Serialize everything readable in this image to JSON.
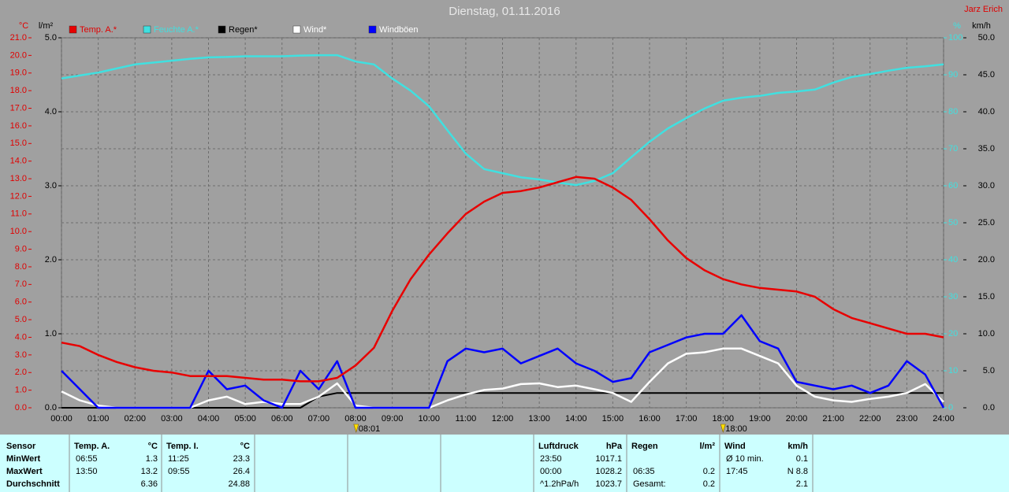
{
  "chart_data": {
    "type": "line",
    "title": "Dienstag, 01.11.2016",
    "author": "Jarz Erich",
    "axis_units": {
      "y": "°C",
      "y2": "l/m²",
      "y3": "%",
      "y4": "km/h"
    },
    "x": [
      0,
      0.5,
      1,
      1.5,
      2,
      2.5,
      3,
      3.5,
      4,
      4.5,
      5,
      5.5,
      6,
      6.5,
      7,
      7.5,
      8,
      8.5,
      9,
      9.5,
      10,
      10.5,
      11,
      11.5,
      12,
      12.5,
      13,
      13.5,
      14,
      14.5,
      15,
      15.5,
      16,
      16.5,
      17,
      17.5,
      18,
      18.5,
      19,
      19.5,
      20,
      20.5,
      21,
      21.5,
      22,
      22.5,
      23,
      23.5,
      24
    ],
    "xlim": [
      0,
      24
    ],
    "xticks": [
      {
        "value": 0,
        "label": "00:00"
      },
      {
        "value": 1,
        "label": "01:00"
      },
      {
        "value": 2,
        "label": "02:00"
      },
      {
        "value": 3,
        "label": "03:00"
      },
      {
        "value": 4,
        "label": "04:00"
      },
      {
        "value": 5,
        "label": "05:00"
      },
      {
        "value": 6,
        "label": "06:00"
      },
      {
        "value": 7,
        "label": "07:00"
      },
      {
        "value": 8,
        "label": "08:00"
      },
      {
        "value": 9,
        "label": "09:00"
      },
      {
        "value": 10,
        "label": "10:00"
      },
      {
        "value": 11,
        "label": "11:00"
      },
      {
        "value": 12,
        "label": "12:00"
      },
      {
        "value": 13,
        "label": "13:00"
      },
      {
        "value": 14,
        "label": "14:00"
      },
      {
        "value": 15,
        "label": "15:00"
      },
      {
        "value": 16,
        "label": "16:00"
      },
      {
        "value": 17,
        "label": "17:00"
      },
      {
        "value": 18,
        "label": "18:00"
      },
      {
        "value": 19,
        "label": "19:00"
      },
      {
        "value": 20,
        "label": "20:00"
      },
      {
        "value": 21,
        "label": "21:00"
      },
      {
        "value": 22,
        "label": "22:00"
      },
      {
        "value": 23,
        "label": "23:00"
      },
      {
        "value": 24,
        "label": "24:00"
      }
    ],
    "ylim": [
      0,
      21
    ],
    "yticks": [
      {
        "value": 0,
        "label": "0.0"
      },
      {
        "value": 1,
        "label": "1.0"
      },
      {
        "value": 2,
        "label": "2.0"
      },
      {
        "value": 3,
        "label": "3.0"
      },
      {
        "value": 4,
        "label": "4.0"
      },
      {
        "value": 5,
        "label": "5.0"
      },
      {
        "value": 6,
        "label": "6.0"
      },
      {
        "value": 7,
        "label": "7.0"
      },
      {
        "value": 8,
        "label": "8.0"
      },
      {
        "value": 9,
        "label": "9.0"
      },
      {
        "value": 10,
        "label": "10.0"
      },
      {
        "value": 11,
        "label": "11.0"
      },
      {
        "value": 12,
        "label": "12.0"
      },
      {
        "value": 13,
        "label": "13.0"
      },
      {
        "value": 14,
        "label": "14.0"
      },
      {
        "value": 15,
        "label": "15.0"
      },
      {
        "value": 16,
        "label": "16.0"
      },
      {
        "value": 17,
        "label": "17.0"
      },
      {
        "value": 18,
        "label": "18.0"
      },
      {
        "value": 19,
        "label": "19.0"
      },
      {
        "value": 20,
        "label": "20.0"
      },
      {
        "value": 21,
        "label": "21.0"
      }
    ],
    "y2lim": [
      0,
      5
    ],
    "y2ticks": [
      {
        "value": 0,
        "label": "0.0"
      },
      {
        "value": 1,
        "label": "1.0"
      },
      {
        "value": 2,
        "label": "2.0"
      },
      {
        "value": 3,
        "label": "3.0"
      },
      {
        "value": 4,
        "label": "4.0"
      },
      {
        "value": 5,
        "label": "5.0"
      }
    ],
    "y3lim": [
      0,
      100
    ],
    "y3ticks": [
      0,
      10,
      20,
      30,
      40,
      50,
      60,
      70,
      80,
      90,
      100
    ],
    "y4lim": [
      0,
      50
    ],
    "y4ticks": [
      {
        "value": 0,
        "label": "0.0"
      },
      {
        "value": 5,
        "label": "5.0"
      },
      {
        "value": 10,
        "label": "10.0"
      },
      {
        "value": 15,
        "label": "15.0"
      },
      {
        "value": 20,
        "label": "20.0"
      },
      {
        "value": 25,
        "label": "25.0"
      },
      {
        "value": 30,
        "label": "30.0"
      },
      {
        "value": 35,
        "label": "35.0"
      },
      {
        "value": 40,
        "label": "40.0"
      },
      {
        "value": 45,
        "label": "45.0"
      },
      {
        "value": 50,
        "label": "50.0"
      }
    ],
    "grid": true,
    "series": [
      {
        "name": "Temp. A.*",
        "color": "#e80000",
        "axis": "y",
        "values": [
          3.7,
          3.5,
          3.0,
          2.6,
          2.3,
          2.1,
          2.0,
          1.8,
          1.8,
          1.8,
          1.7,
          1.6,
          1.6,
          1.5,
          1.5,
          1.7,
          2.4,
          3.4,
          5.5,
          7.3,
          8.7,
          9.9,
          11.0,
          11.7,
          12.2,
          12.3,
          12.5,
          12.8,
          13.1,
          13.0,
          12.5,
          11.8,
          10.7,
          9.5,
          8.5,
          7.8,
          7.3,
          7.0,
          6.8,
          6.7,
          6.6,
          6.3,
          5.6,
          5.1,
          4.8,
          4.5,
          4.2,
          4.2,
          4.0
        ]
      },
      {
        "name": "Feuchte A.*",
        "color": "#40e0e0",
        "axis": "y3",
        "values": [
          89.0,
          89.8,
          90.6,
          91.7,
          92.8,
          93.3,
          93.8,
          94.3,
          94.7,
          94.8,
          95.0,
          95.0,
          95.0,
          95.2,
          95.3,
          95.3,
          93.6,
          92.8,
          89.0,
          85.7,
          81.5,
          75.0,
          68.7,
          64.5,
          63.4,
          62.3,
          61.7,
          60.9,
          60.2,
          61.3,
          63.4,
          67.7,
          71.9,
          75.5,
          78.3,
          80.9,
          83.0,
          83.8,
          84.3,
          85.1,
          85.5,
          86.0,
          87.9,
          89.4,
          90.2,
          91.1,
          91.9,
          92.3,
          92.8
        ]
      },
      {
        "name": "Regen*",
        "color": "#000000",
        "axis": "y2",
        "values": [
          0,
          0,
          0,
          0,
          0,
          0,
          0,
          0,
          0,
          0,
          0,
          0,
          0,
          0,
          0.15,
          0.2,
          0.2,
          0.2,
          0.2,
          0.2,
          0.2,
          0.2,
          0.2,
          0.2,
          0.2,
          0.2,
          0.2,
          0.2,
          0.2,
          0.2,
          0.2,
          0.2,
          0.2,
          0.2,
          0.2,
          0.2,
          0.2,
          0.2,
          0.2,
          0.2,
          0.2,
          0.2,
          0.2,
          0.2,
          0.2,
          0.2,
          0.2,
          0.2,
          0.2
        ]
      },
      {
        "name": "Wind*",
        "color": "#ffffff",
        "axis": "y4",
        "values": [
          2.2,
          1.0,
          0.3,
          0,
          0,
          0,
          0,
          0,
          1.0,
          1.5,
          0.5,
          0.8,
          0.5,
          0.5,
          1.5,
          3.3,
          0.3,
          0,
          0,
          0,
          0,
          1.0,
          1.8,
          2.4,
          2.6,
          3.2,
          3.3,
          2.8,
          3.0,
          2.5,
          2.0,
          0.8,
          3.5,
          6.0,
          7.3,
          7.5,
          8.0,
          8.0,
          7.0,
          6.0,
          3.0,
          1.5,
          1.0,
          0.8,
          1.2,
          1.5,
          2.0,
          3.2,
          0.8
        ]
      },
      {
        "name": "Windböen",
        "color": "#0000ff",
        "axis": "y4",
        "values": [
          5.0,
          2.5,
          0,
          0,
          0,
          0,
          0,
          0,
          5.0,
          2.5,
          3.0,
          1.0,
          0,
          5.0,
          2.5,
          6.3,
          0,
          0,
          0,
          0,
          0,
          6.3,
          8.0,
          7.5,
          8.0,
          6.0,
          7.0,
          8.0,
          6.0,
          5.0,
          3.5,
          4.0,
          7.5,
          8.5,
          9.5,
          10.0,
          10.0,
          12.5,
          9.0,
          8.0,
          3.5,
          3.0,
          2.5,
          3.0,
          2.0,
          3.0,
          6.3,
          4.5,
          0
        ]
      }
    ],
    "annotations": [
      {
        "x": 8.0167,
        "label": "08:01"
      },
      {
        "x": 18,
        "label": "18:00"
      }
    ]
  },
  "stats": {
    "row_labels": {
      "header": "Sensor",
      "rows": [
        "MinWert",
        "MaxWert",
        "Durchschnitt"
      ]
    },
    "panels": [
      {
        "title": "Temp. A.",
        "unit": "°C",
        "rows": [
          [
            "06:55",
            "1.3"
          ],
          [
            "13:50",
            "13.2"
          ],
          [
            null,
            "6.36"
          ]
        ]
      },
      {
        "title": "Temp. I.",
        "unit": "°C",
        "rows": [
          [
            "11:25",
            "23.3"
          ],
          [
            "09:55",
            "26.4"
          ],
          [
            null,
            "24.88"
          ]
        ]
      },
      {
        "title": "Luftdruck",
        "unit": "hPa",
        "rows": [
          [
            "23:50",
            "1017.1"
          ],
          [
            "00:00",
            "1028.2"
          ],
          [
            "^1.2hPa/h",
            "1023.7"
          ]
        ]
      },
      {
        "title": "Regen",
        "unit": "l/m²",
        "rows": [
          [
            null,
            null
          ],
          [
            "06:35",
            "0.2"
          ],
          [
            "Gesamt:",
            "0.2"
          ]
        ]
      },
      {
        "title": "Wind",
        "unit": "km/h",
        "rows": [
          [
            "Ø 10 min.",
            "0.1"
          ],
          [
            "17:45",
            "N 8.8"
          ],
          [
            null,
            "2.1"
          ]
        ]
      }
    ]
  }
}
